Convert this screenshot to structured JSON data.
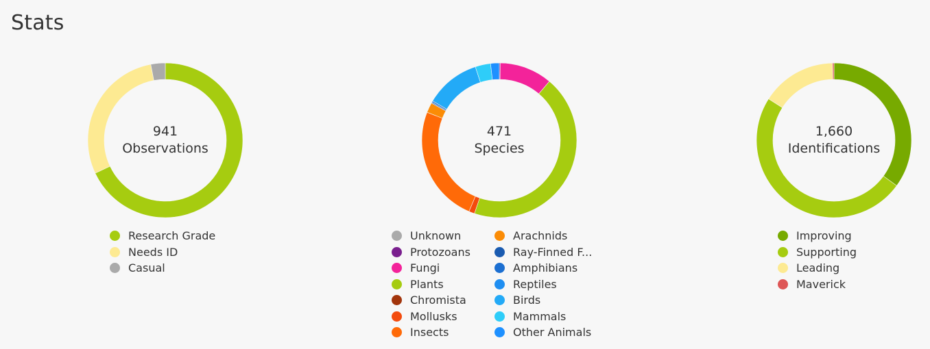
{
  "page": {
    "title": "Stats"
  },
  "chart_data": [
    {
      "type": "pie",
      "donut": true,
      "center_value": "941",
      "center_label": "Observations",
      "categories": [
        "Research Grade",
        "Needs ID",
        "Casual"
      ],
      "values": [
        68,
        29,
        3
      ],
      "colors": [
        "#a6cc10",
        "#fdea92",
        "#aaaaaa"
      ]
    },
    {
      "type": "pie",
      "donut": true,
      "center_value": "471",
      "center_label": "Species",
      "categories": [
        "Unknown",
        "Protozoans",
        "Fungi",
        "Plants",
        "Chromista",
        "Mollusks",
        "Insects",
        "Arachnids",
        "Ray-Finned F...",
        "Amphibians",
        "Reptiles",
        "Birds",
        "Mammals",
        "Other Animals"
      ],
      "values": [
        0,
        0.2,
        11,
        44,
        0,
        1.2,
        24.5,
        2.1,
        0.2,
        0.3,
        0,
        11.5,
        3.2,
        1.8
      ],
      "colors": [
        "#aaaaaa",
        "#7a1f8e",
        "#f3239a",
        "#a6cc10",
        "#a2350c",
        "#f34b0d",
        "#ff6a08",
        "#fb8c06",
        "#1a5bb0",
        "#1c6fd1",
        "#1f8ef1",
        "#23aaf7",
        "#2ecdf9",
        "#1e90ff"
      ]
    },
    {
      "type": "pie",
      "donut": true,
      "center_value": "1,660",
      "center_label": "Identifications",
      "categories": [
        "Improving",
        "Supporting",
        "Leading",
        "Maverick"
      ],
      "values": [
        35,
        49,
        15.7,
        0.3
      ],
      "colors": [
        "#77aa00",
        "#a6cc10",
        "#fdea92",
        "#de5656"
      ]
    }
  ]
}
